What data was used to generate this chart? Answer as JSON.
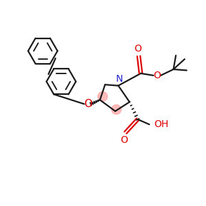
{
  "background": "#ffffff",
  "line_color": "#1a1a1a",
  "N_color": "#2222cc",
  "O_color": "#dd0000",
  "bond_lw": 1.6,
  "font_size": 10,
  "fig_size": [
    3.0,
    3.0
  ],
  "dpi": 100,
  "xlim": [
    0,
    10
  ],
  "ylim": [
    0,
    10
  ]
}
